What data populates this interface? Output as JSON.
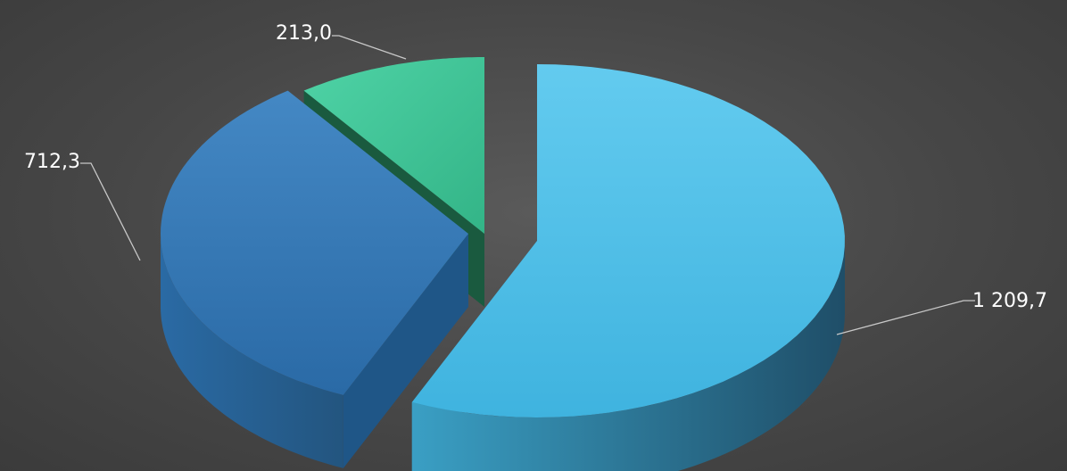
{
  "chart_data": {
    "type": "pie",
    "style": "3d-exploded",
    "slices": [
      {
        "value": 1209.7,
        "label": "1 209,7",
        "color": "#46b7e0"
      },
      {
        "value": 712.3,
        "label": "712,3",
        "color": "#2f78b5"
      },
      {
        "value": 213.0,
        "label": "213,0",
        "color": "#3fc496"
      }
    ]
  }
}
